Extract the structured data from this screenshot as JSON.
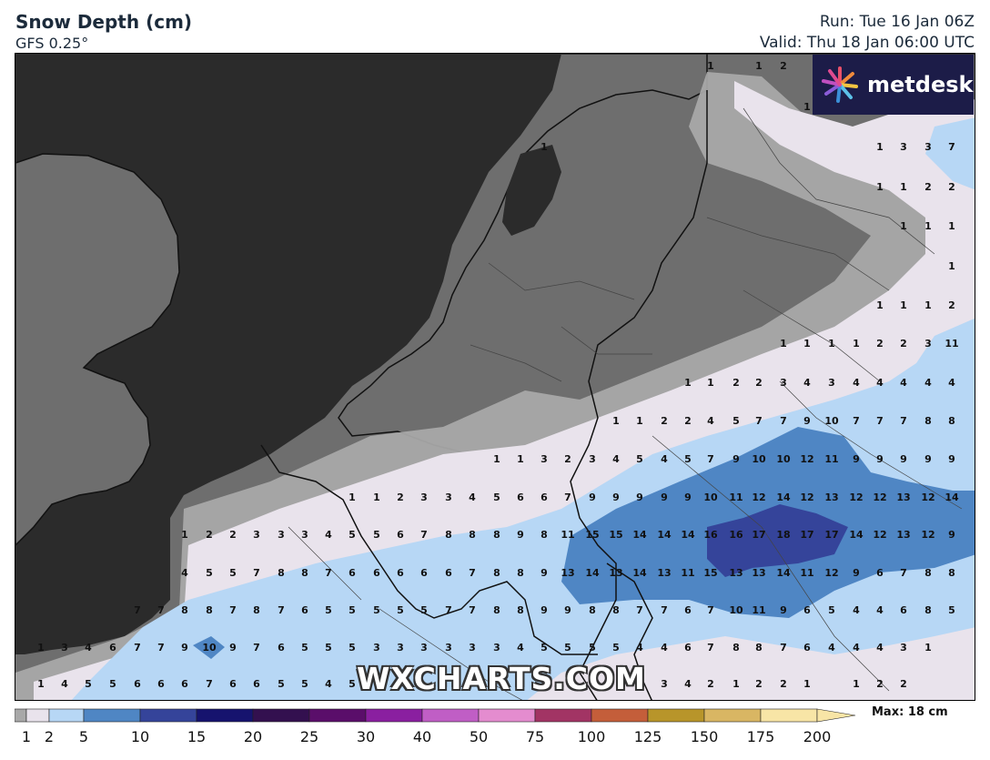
{
  "header": {
    "title": "Snow Depth (cm)",
    "model": "GFS 0.25°",
    "run": "Run: Tue 16 Jan 06Z",
    "valid": "Valid: Thu 18 Jan 06:00 UTC"
  },
  "logo": {
    "text": "metdesk"
  },
  "watermark": "WXCHARTS.COM",
  "legend": {
    "ticks": [
      "1",
      "2",
      "5",
      "10",
      "15",
      "20",
      "25",
      "30",
      "40",
      "50",
      "75",
      "100",
      "125",
      "150",
      "175",
      "200"
    ],
    "colors": [
      "#a8a8a8",
      "#e9e3ec",
      "#b7d7f5",
      "#4f86c4",
      "#35449a",
      "#16136e",
      "#33104f",
      "#5a0e6a",
      "#8a1fa0",
      "#c05ec5",
      "#e48ccf",
      "#a23464",
      "#c45e3a",
      "#b8952a",
      "#d9b663",
      "#f8e5a6"
    ],
    "max_label": "Max: 18 cm"
  },
  "map_colors": {
    "land": "#6e6e6e",
    "sea": "#2b2b2b",
    "snow_1": "#a8a8a8",
    "snow_2": "#e9e3ec",
    "snow_5": "#b7d7f5",
    "snow_10": "#4f86c4",
    "snow_15": "#35449a"
  },
  "grid_values": [
    {
      "row": 0,
      "values": [
        [
          "780",
          "1"
        ],
        [
          "833",
          "1"
        ],
        [
          "860",
          "2"
        ]
      ]
    },
    {
      "row": 1,
      "values": [
        [
          "886",
          "1"
        ]
      ]
    },
    {
      "row": 2,
      "values": [
        [
          "597",
          "1"
        ],
        [
          "966",
          "1"
        ],
        [
          "992",
          "3"
        ],
        [
          "1019",
          "3"
        ],
        [
          "1045",
          "7"
        ]
      ]
    },
    {
      "row": 3,
      "values": [
        [
          "966",
          "1"
        ],
        [
          "992",
          "1"
        ],
        [
          "1019",
          "2"
        ],
        [
          "1045",
          "2"
        ]
      ]
    },
    {
      "row": 4,
      "values": [
        [
          "992",
          "1"
        ],
        [
          "1019",
          "1"
        ],
        [
          "1045",
          "1"
        ]
      ]
    },
    {
      "row": 5,
      "values": [
        [
          "1045",
          "1"
        ]
      ]
    },
    {
      "row": 6,
      "values": [
        [
          "966",
          "1"
        ],
        [
          "992",
          "1"
        ],
        [
          "1019",
          "1"
        ],
        [
          "1045",
          "2"
        ]
      ]
    },
    {
      "row": 7,
      "values": [
        [
          "860",
          "1"
        ],
        [
          "886",
          "1"
        ],
        [
          "913",
          "1"
        ],
        [
          "940",
          "1"
        ],
        [
          "966",
          "2"
        ],
        [
          "992",
          "2"
        ],
        [
          "1019",
          "3"
        ],
        [
          "1045",
          "11"
        ]
      ]
    },
    {
      "row": 8,
      "values": [
        [
          "755",
          "1"
        ],
        [
          "780",
          "1"
        ],
        [
          "808",
          "2"
        ],
        [
          "833",
          "2"
        ],
        [
          "860",
          "3"
        ],
        [
          "886",
          "4"
        ],
        [
          "913",
          "3"
        ],
        [
          "940",
          "4"
        ],
        [
          "966",
          "4"
        ],
        [
          "992",
          "4"
        ],
        [
          "1019",
          "4"
        ],
        [
          "1045",
          "4"
        ]
      ]
    },
    {
      "row": 9,
      "values": [
        [
          "676",
          "1"
        ],
        [
          "702",
          "1"
        ],
        [
          "729",
          "2"
        ],
        [
          "755",
          "2"
        ],
        [
          "780",
          "4"
        ],
        [
          "808",
          "5"
        ],
        [
          "833",
          "7"
        ],
        [
          "860",
          "7"
        ],
        [
          "886",
          "9"
        ],
        [
          "913",
          "10"
        ],
        [
          "940",
          "7"
        ],
        [
          "966",
          "7"
        ],
        [
          "992",
          "7"
        ],
        [
          "1019",
          "8"
        ],
        [
          "1045",
          "8"
        ]
      ]
    },
    {
      "row": 10,
      "values": [
        [
          "545",
          "1"
        ],
        [
          "571",
          "1"
        ],
        [
          "597",
          "3"
        ],
        [
          "623",
          "2"
        ],
        [
          "650",
          "3"
        ],
        [
          "676",
          "4"
        ],
        [
          "702",
          "5"
        ],
        [
          "729",
          "4"
        ],
        [
          "755",
          "5"
        ],
        [
          "780",
          "7"
        ],
        [
          "808",
          "9"
        ],
        [
          "833",
          "10"
        ],
        [
          "860",
          "10"
        ],
        [
          "886",
          "12"
        ],
        [
          "913",
          "11"
        ],
        [
          "940",
          "9"
        ],
        [
          "966",
          "9"
        ],
        [
          "992",
          "9"
        ],
        [
          "1019",
          "9"
        ],
        [
          "1045",
          "9"
        ]
      ]
    },
    {
      "row": 11,
      "values": [
        [
          "386",
          "1"
        ],
        [
          "413",
          "1"
        ],
        [
          "439",
          "2"
        ],
        [
          "465",
          "3"
        ],
        [
          "492",
          "3"
        ],
        [
          "518",
          "4"
        ],
        [
          "545",
          "5"
        ],
        [
          "571",
          "6"
        ],
        [
          "597",
          "6"
        ],
        [
          "623",
          "7"
        ],
        [
          "650",
          "9"
        ],
        [
          "676",
          "9"
        ],
        [
          "702",
          "9"
        ],
        [
          "729",
          "9"
        ],
        [
          "755",
          "9"
        ],
        [
          "780",
          "10"
        ],
        [
          "808",
          "11"
        ],
        [
          "833",
          "12"
        ],
        [
          "860",
          "14"
        ],
        [
          "886",
          "12"
        ],
        [
          "913",
          "13"
        ],
        [
          "940",
          "12"
        ],
        [
          "966",
          "12"
        ],
        [
          "992",
          "13"
        ],
        [
          "1019",
          "12"
        ],
        [
          "1045",
          "14"
        ]
      ]
    },
    {
      "row": 12,
      "values": [
        [
          "202",
          "1"
        ],
        [
          "229",
          "2"
        ],
        [
          "255",
          "2"
        ],
        [
          "281",
          "3"
        ],
        [
          "308",
          "3"
        ],
        [
          "334",
          "3"
        ],
        [
          "360",
          "4"
        ],
        [
          "386",
          "5"
        ],
        [
          "413",
          "5"
        ],
        [
          "439",
          "6"
        ],
        [
          "465",
          "7"
        ],
        [
          "492",
          "8"
        ],
        [
          "518",
          "8"
        ],
        [
          "545",
          "8"
        ],
        [
          "571",
          "9"
        ],
        [
          "597",
          "8"
        ],
        [
          "623",
          "11"
        ],
        [
          "650",
          "15"
        ],
        [
          "676",
          "15"
        ],
        [
          "702",
          "14"
        ],
        [
          "729",
          "14"
        ],
        [
          "755",
          "14"
        ],
        [
          "780",
          "16"
        ],
        [
          "808",
          "16"
        ],
        [
          "833",
          "17"
        ],
        [
          "860",
          "18"
        ],
        [
          "886",
          "17"
        ],
        [
          "913",
          "17"
        ],
        [
          "940",
          "14"
        ],
        [
          "966",
          "12"
        ],
        [
          "992",
          "13"
        ],
        [
          "1019",
          "12"
        ],
        [
          "1045",
          "9"
        ]
      ]
    },
    {
      "row": 13,
      "values": [
        [
          "202",
          "4"
        ],
        [
          "229",
          "5"
        ],
        [
          "255",
          "5"
        ],
        [
          "281",
          "7"
        ],
        [
          "308",
          "8"
        ],
        [
          "334",
          "8"
        ],
        [
          "360",
          "7"
        ],
        [
          "386",
          "6"
        ],
        [
          "413",
          "6"
        ],
        [
          "439",
          "6"
        ],
        [
          "465",
          "6"
        ],
        [
          "492",
          "6"
        ],
        [
          "518",
          "7"
        ],
        [
          "545",
          "8"
        ],
        [
          "571",
          "8"
        ],
        [
          "597",
          "9"
        ],
        [
          "623",
          "13"
        ],
        [
          "650",
          "14"
        ],
        [
          "676",
          "13"
        ],
        [
          "702",
          "14"
        ],
        [
          "729",
          "13"
        ],
        [
          "755",
          "11"
        ],
        [
          "780",
          "15"
        ],
        [
          "808",
          "13"
        ],
        [
          "833",
          "13"
        ],
        [
          "860",
          "14"
        ],
        [
          "886",
          "11"
        ],
        [
          "913",
          "12"
        ],
        [
          "940",
          "9"
        ],
        [
          "966",
          "6"
        ],
        [
          "992",
          "7"
        ],
        [
          "1019",
          "8"
        ],
        [
          "1045",
          "8"
        ]
      ]
    },
    {
      "row": 14,
      "values": [
        [
          "150",
          "7"
        ],
        [
          "176",
          "7"
        ],
        [
          "202",
          "8"
        ],
        [
          "229",
          "8"
        ],
        [
          "255",
          "7"
        ],
        [
          "281",
          "8"
        ],
        [
          "308",
          "7"
        ],
        [
          "334",
          "6"
        ],
        [
          "360",
          "5"
        ],
        [
          "386",
          "5"
        ],
        [
          "413",
          "5"
        ],
        [
          "439",
          "5"
        ],
        [
          "465",
          "5"
        ],
        [
          "492",
          "7"
        ],
        [
          "518",
          "7"
        ],
        [
          "545",
          "8"
        ],
        [
          "571",
          "8"
        ],
        [
          "597",
          "9"
        ],
        [
          "623",
          "9"
        ],
        [
          "650",
          "8"
        ],
        [
          "676",
          "8"
        ],
        [
          "702",
          "7"
        ],
        [
          "729",
          "7"
        ],
        [
          "755",
          "6"
        ],
        [
          "780",
          "7"
        ],
        [
          "808",
          "10"
        ],
        [
          "833",
          "11"
        ],
        [
          "860",
          "9"
        ],
        [
          "886",
          "6"
        ],
        [
          "913",
          "5"
        ],
        [
          "940",
          "4"
        ],
        [
          "966",
          "4"
        ],
        [
          "992",
          "6"
        ],
        [
          "1019",
          "8"
        ],
        [
          "1045",
          "5"
        ]
      ]
    },
    {
      "row": 15,
      "values": [
        [
          "44",
          "1"
        ],
        [
          "70",
          "3"
        ],
        [
          "96",
          "4"
        ],
        [
          "123",
          "6"
        ],
        [
          "150",
          "7"
        ],
        [
          "176",
          "7"
        ],
        [
          "202",
          "9"
        ],
        [
          "229",
          "10"
        ],
        [
          "255",
          "9"
        ],
        [
          "281",
          "7"
        ],
        [
          "308",
          "6"
        ],
        [
          "334",
          "5"
        ],
        [
          "360",
          "5"
        ],
        [
          "386",
          "5"
        ],
        [
          "413",
          "3"
        ],
        [
          "439",
          "3"
        ],
        [
          "465",
          "3"
        ],
        [
          "492",
          "3"
        ],
        [
          "518",
          "3"
        ],
        [
          "545",
          "3"
        ],
        [
          "571",
          "4"
        ],
        [
          "597",
          "5"
        ],
        [
          "623",
          "5"
        ],
        [
          "650",
          "5"
        ],
        [
          "676",
          "5"
        ],
        [
          "702",
          "4"
        ],
        [
          "729",
          "4"
        ],
        [
          "755",
          "6"
        ],
        [
          "780",
          "7"
        ],
        [
          "808",
          "8"
        ],
        [
          "833",
          "8"
        ],
        [
          "860",
          "7"
        ],
        [
          "886",
          "6"
        ],
        [
          "913",
          "4"
        ],
        [
          "940",
          "4"
        ],
        [
          "966",
          "4"
        ],
        [
          "992",
          "3"
        ],
        [
          "1019",
          "1"
        ]
      ]
    },
    {
      "row": 16,
      "values": [
        [
          "44",
          "1"
        ],
        [
          "70",
          "4"
        ],
        [
          "96",
          "5"
        ],
        [
          "123",
          "5"
        ],
        [
          "150",
          "6"
        ],
        [
          "176",
          "6"
        ],
        [
          "202",
          "6"
        ],
        [
          "229",
          "7"
        ],
        [
          "255",
          "6"
        ],
        [
          "281",
          "6"
        ],
        [
          "308",
          "5"
        ],
        [
          "334",
          "5"
        ],
        [
          "360",
          "4"
        ],
        [
          "386",
          "5"
        ],
        [
          "702",
          "4"
        ],
        [
          "729",
          "3"
        ],
        [
          "755",
          "4"
        ],
        [
          "780",
          "2"
        ],
        [
          "808",
          "1"
        ],
        [
          "833",
          "2"
        ],
        [
          "860",
          "2"
        ],
        [
          "886",
          "1"
        ],
        [
          "940",
          "1"
        ],
        [
          "966",
          "2"
        ],
        [
          "992",
          "2"
        ]
      ]
    }
  ]
}
